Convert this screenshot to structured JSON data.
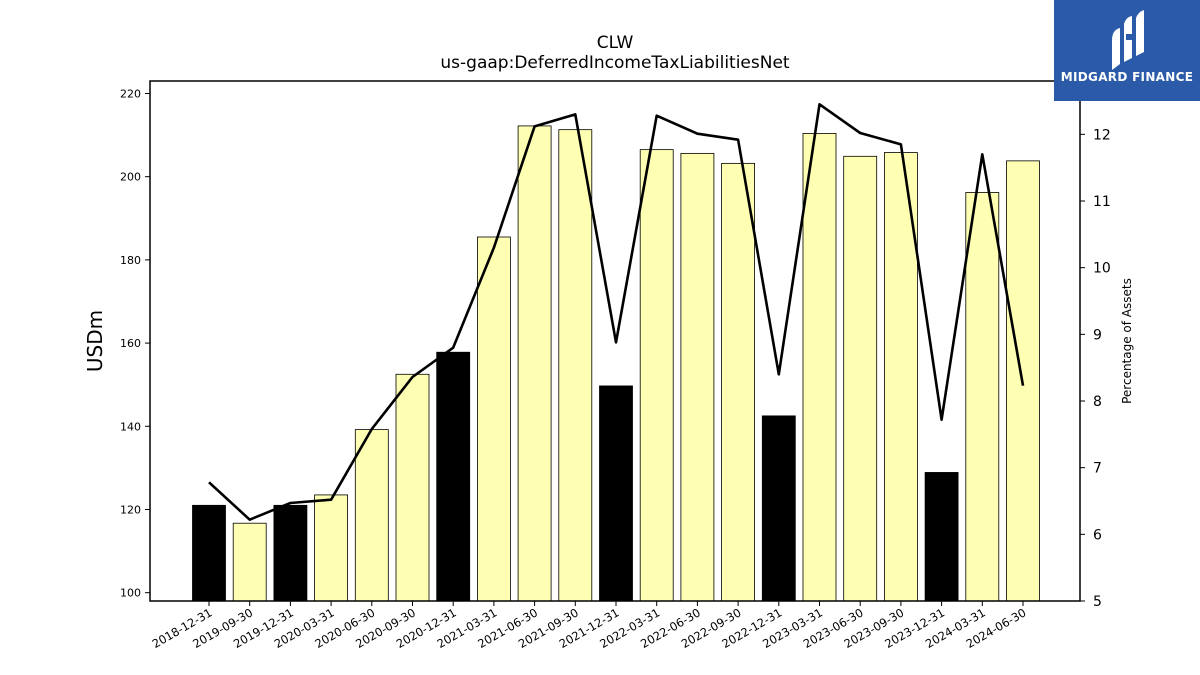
{
  "chart_data": {
    "type": "bar+line",
    "title": "CLW",
    "subtitle": "us-gaap:DeferredIncomeTaxLiabilitiesNet",
    "ylabel": "USDm",
    "y2label": "Percentage of Assets",
    "ylim": [
      98,
      223
    ],
    "y2lim": [
      5,
      12.8
    ],
    "yticks": [
      100,
      120,
      140,
      160,
      180,
      200,
      220
    ],
    "y2ticks": [
      5,
      6,
      7,
      8,
      9,
      10,
      11,
      12
    ],
    "categories": [
      "2018-12-31",
      "2019-09-30",
      "2019-12-31",
      "2020-03-31",
      "2020-06-30",
      "2020-09-30",
      "2020-12-31",
      "2021-03-31",
      "2021-06-30",
      "2021-09-30",
      "2021-12-31",
      "2022-03-31",
      "2022-06-30",
      "2022-09-30",
      "2022-12-31",
      "2023-03-31",
      "2023-06-30",
      "2023-09-30",
      "2023-12-31",
      "2024-03-31",
      "2024-06-30"
    ],
    "series": [
      {
        "values": [
          121.0,
          116.7,
          121.0,
          123.5,
          139.2,
          152.5,
          157.8,
          185.5,
          212.2,
          211.3,
          149.7,
          206.5,
          205.6,
          203.2,
          142.5,
          210.4,
          204.9,
          205.8,
          128.9,
          196.2,
          203.8
        ],
        "year_end": [
          true,
          false,
          true,
          false,
          false,
          false,
          true,
          false,
          false,
          false,
          true,
          false,
          false,
          false,
          true,
          false,
          false,
          false,
          true,
          false,
          false
        ],
        "year_end_color": "#000000",
        "quarter_color": "#ffffb3"
      },
      {
        "values": [
          6.78,
          6.22,
          6.47,
          6.52,
          7.58,
          8.36,
          8.8,
          10.3,
          12.12,
          12.3,
          8.88,
          12.28,
          12.01,
          11.92,
          8.4,
          12.45,
          12.02,
          11.85,
          7.72,
          11.7,
          8.23
        ],
        "color": "#000000"
      }
    ]
  },
  "logo": {
    "text": "MIDGARD FINANCE",
    "color": "#2a5aa8"
  }
}
